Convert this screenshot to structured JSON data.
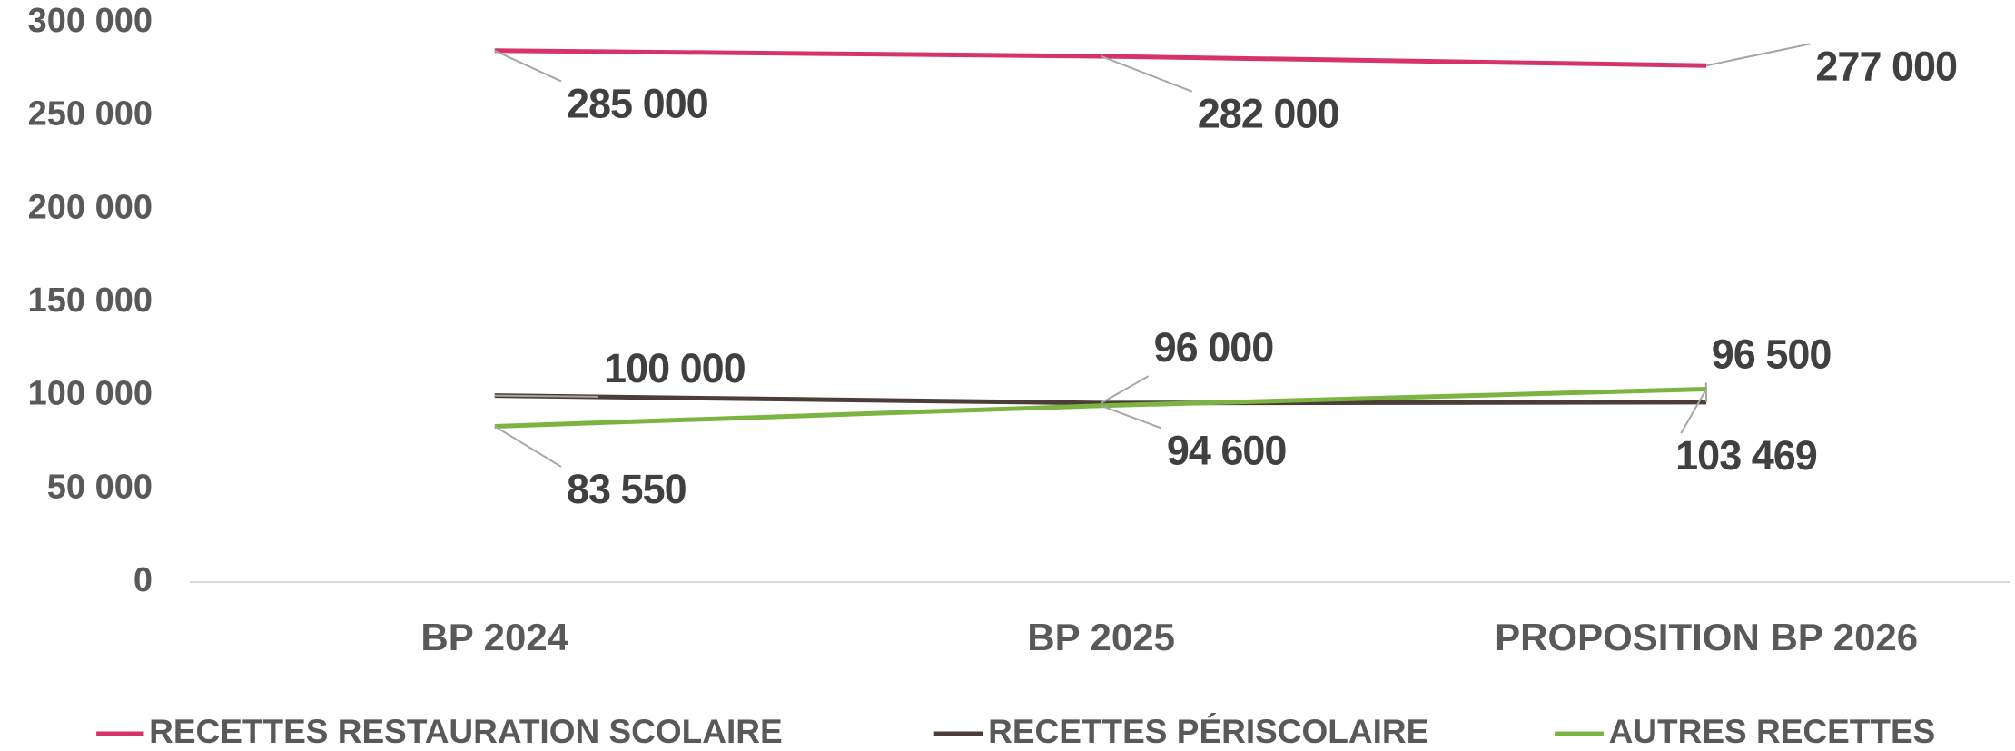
{
  "chart_data": {
    "type": "line",
    "categories": [
      "BP 2024",
      "BP 2025",
      "PROPOSITION BP 2026"
    ],
    "series": [
      {
        "name": "RECETTES RESTAURATION SCOLAIRE",
        "color": "#d6336c",
        "values": [
          285000,
          282000,
          277000
        ],
        "value_labels": [
          "285 000",
          "282 000",
          "277 000"
        ]
      },
      {
        "name": "RECETTES PÉRISCOLAIRE",
        "color": "#4b3d37",
        "values": [
          100000,
          96000,
          96500
        ],
        "value_labels": [
          "100 000",
          "96 000",
          "96 500"
        ]
      },
      {
        "name": "AUTRES RECETTES",
        "color": "#7cb442",
        "values": [
          83550,
          94600,
          103469
        ],
        "value_labels": [
          "83 550",
          "94 600",
          "103 469"
        ]
      }
    ],
    "ylim": [
      0,
      300000
    ],
    "yticks": [
      0,
      {
        "value": 50000,
        "label": "50 000"
      },
      {
        "value": 100000,
        "label": "100 000"
      },
      {
        "value": 150000,
        "label": "150 000"
      },
      {
        "value": 200000,
        "label": "200 000"
      },
      {
        "value": 250000,
        "label": "250 000"
      },
      {
        "value": 300000,
        "label": "300 000"
      }
    ],
    "legend": "bottom"
  }
}
